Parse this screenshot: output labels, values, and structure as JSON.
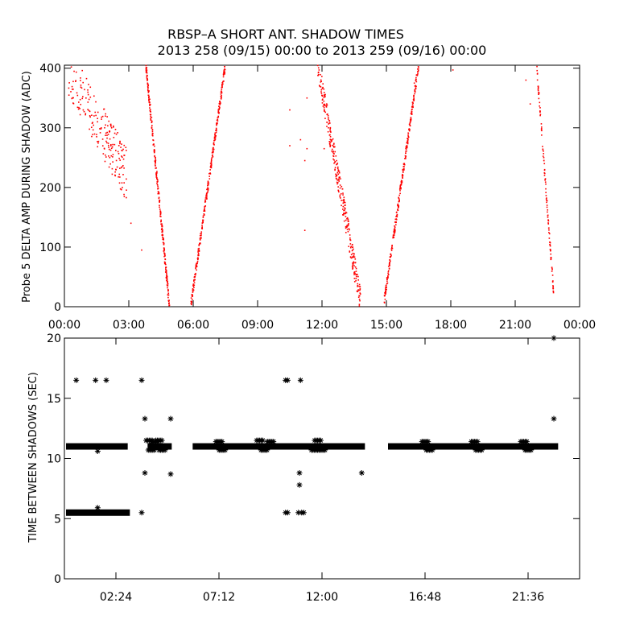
{
  "figure": {
    "title_line1": "RBSP–A SHORT ANT. SHADOW TIMES",
    "title_line2": "2013 258 (09/15) 00:00 to 2013 259 (09/16) 00:00"
  },
  "colors": {
    "top_points": "#ff0000",
    "bottom_points": "#000000",
    "axes": "#000000",
    "background": "#ffffff"
  },
  "chart_data": [
    {
      "type": "scatter",
      "ylabel": "Probe 5 DELTA AMP DURING SHADOW (ADC)",
      "xlabel": "",
      "x_unit": "hours since 2013-09-15 00:00",
      "xlim": [
        0,
        24
      ],
      "ylim": [
        0,
        405
      ],
      "xticks": [
        0,
        3,
        6,
        9,
        12,
        15,
        18,
        21,
        24
      ],
      "xtick_labels": [
        "00:00",
        "03:00",
        "06:00",
        "09:00",
        "12:00",
        "15:00",
        "18:00",
        "21:00",
        "00:00"
      ],
      "yticks": [
        0,
        100,
        200,
        300,
        400
      ],
      "ytick_labels": [
        "0",
        "100",
        "200",
        "300",
        "400"
      ],
      "grid": false,
      "color": "#ff0000",
      "segments": [
        {
          "x": [
            0.2,
            2.9
          ],
          "y": [
            400,
            220
          ],
          "spread": 45,
          "count": 210
        },
        {
          "x": [
            3.8,
            4.9
          ],
          "y": [
            405,
            0
          ],
          "spread": 10,
          "count": 260
        },
        {
          "x": [
            5.9,
            7.5
          ],
          "y": [
            5,
            405
          ],
          "spread": 8,
          "count": 280
        },
        {
          "x": [
            11.8,
            13.8
          ],
          "y": [
            405,
            10
          ],
          "spread": 22,
          "count": 300
        },
        {
          "x": [
            14.9,
            16.5
          ],
          "y": [
            10,
            405
          ],
          "spread": 8,
          "count": 280
        },
        {
          "x": [
            22.0,
            22.8
          ],
          "y": [
            405,
            20
          ],
          "spread": 8,
          "count": 110
        }
      ],
      "isolated_points": [
        [
          3.1,
          140
        ],
        [
          3.6,
          95
        ],
        [
          2.2,
          300
        ],
        [
          2.5,
          260
        ],
        [
          2.7,
          200
        ],
        [
          10.5,
          330
        ],
        [
          10.5,
          270
        ],
        [
          11.2,
          245
        ],
        [
          11.3,
          265
        ],
        [
          11.3,
          350
        ],
        [
          11.2,
          128
        ],
        [
          11.0,
          280
        ],
        [
          12.3,
          300
        ],
        [
          12.1,
          265
        ],
        [
          18.1,
          397
        ],
        [
          21.5,
          380
        ],
        [
          21.7,
          340
        ],
        [
          16.3,
          375
        ]
      ]
    },
    {
      "type": "scatter",
      "ylabel": "TIME BETWEEN SHADOWS (SEC)",
      "xlabel": "",
      "x_unit": "hours since 2013-09-15 00:00",
      "xlim": [
        0,
        24
      ],
      "ylim": [
        0,
        20
      ],
      "xticks": [
        2.4,
        7.2,
        12.0,
        16.8,
        21.6
      ],
      "xtick_labels": [
        "02:24",
        "07:12",
        "12:00",
        "16:48",
        "21:36"
      ],
      "yticks": [
        0,
        5,
        10,
        15,
        20
      ],
      "ytick_labels": [
        "0",
        "5",
        "10",
        "15",
        "20"
      ],
      "grid": false,
      "marker": "asterisk",
      "color": "#000000",
      "bands": [
        {
          "x": [
            0.0,
            2.95
          ],
          "y": 11.0
        },
        {
          "x": [
            0.0,
            3.05
          ],
          "y": 5.5
        },
        {
          "x": [
            3.8,
            5.0
          ],
          "y": 11.0
        },
        {
          "x": [
            5.9,
            14.0
          ],
          "y": 11.0
        },
        {
          "x": [
            15.0,
            23.0
          ],
          "y": 11.0
        }
      ],
      "clusters": [
        {
          "x": 3.95,
          "y": 11.5
        },
        {
          "x": 4.05,
          "y": 10.7
        },
        {
          "x": 4.2,
          "y": 11.4
        },
        {
          "x": 4.4,
          "y": 11.5
        },
        {
          "x": 4.55,
          "y": 10.7
        },
        {
          "x": 7.2,
          "y": 11.4
        },
        {
          "x": 7.35,
          "y": 10.7
        },
        {
          "x": 9.1,
          "y": 11.5
        },
        {
          "x": 9.3,
          "y": 10.7
        },
        {
          "x": 9.6,
          "y": 11.4
        },
        {
          "x": 11.8,
          "y": 11.5
        },
        {
          "x": 12.0,
          "y": 10.7
        },
        {
          "x": 11.65,
          "y": 10.7
        },
        {
          "x": 16.8,
          "y": 11.4
        },
        {
          "x": 17.0,
          "y": 10.7
        },
        {
          "x": 19.1,
          "y": 11.4
        },
        {
          "x": 19.3,
          "y": 10.7
        },
        {
          "x": 21.4,
          "y": 11.4
        },
        {
          "x": 21.6,
          "y": 10.7
        }
      ],
      "points": [
        [
          0.55,
          16.5
        ],
        [
          1.45,
          16.5
        ],
        [
          1.95,
          16.5
        ],
        [
          1.55,
          10.6
        ],
        [
          1.55,
          5.9
        ],
        [
          3.6,
          16.5
        ],
        [
          3.75,
          13.3
        ],
        [
          3.75,
          8.8
        ],
        [
          4.95,
          13.3
        ],
        [
          4.95,
          8.7
        ],
        [
          3.6,
          5.5
        ],
        [
          10.3,
          16.5
        ],
        [
          10.4,
          16.5
        ],
        [
          11.0,
          16.5
        ],
        [
          10.95,
          8.8
        ],
        [
          10.95,
          7.8
        ],
        [
          10.3,
          5.5
        ],
        [
          10.4,
          5.5
        ],
        [
          10.9,
          5.5
        ],
        [
          11.05,
          5.5
        ],
        [
          11.15,
          5.5
        ],
        [
          13.85,
          8.8
        ],
        [
          22.8,
          20.0
        ],
        [
          22.8,
          13.3
        ]
      ]
    }
  ]
}
